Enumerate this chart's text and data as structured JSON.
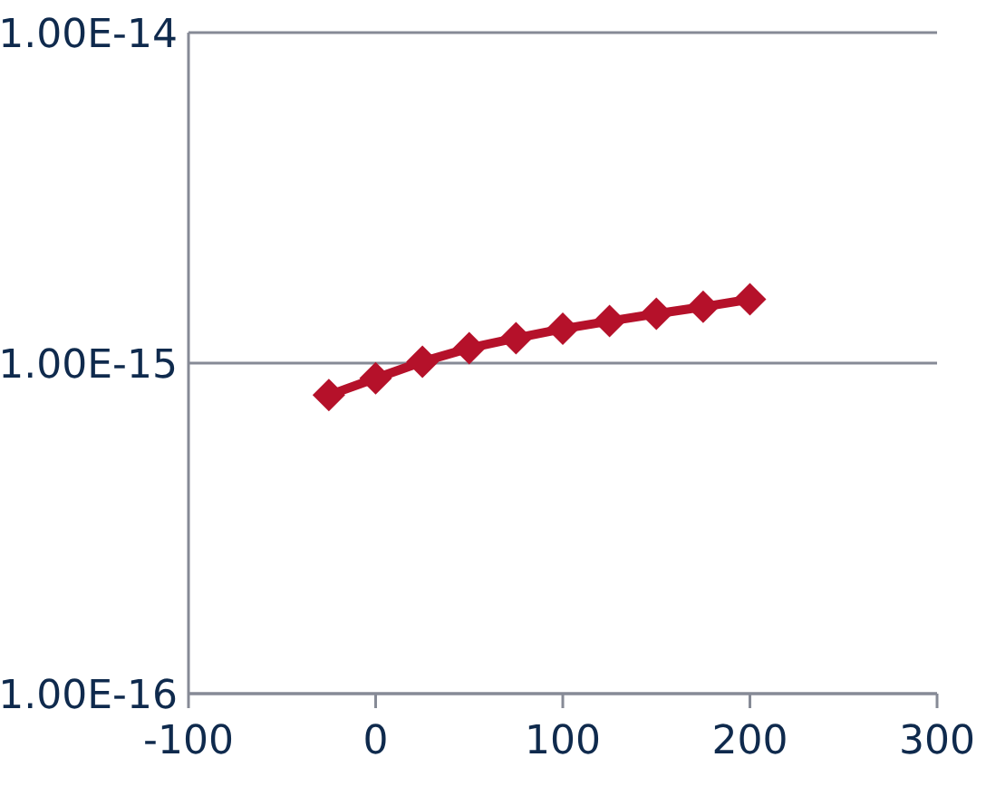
{
  "chart_data": {
    "type": "line",
    "x": [
      -25,
      0,
      25,
      50,
      75,
      100,
      125,
      150,
      175,
      200
    ],
    "series": [
      {
        "color": "#b5112a",
        "values": [
          8e-16,
          9e-16,
          1.01e-15,
          1.11e-15,
          1.19e-15,
          1.27e-15,
          1.34e-15,
          1.41e-15,
          1.48e-15,
          1.56e-15
        ]
      }
    ],
    "xlim": [
      -100,
      300
    ],
    "xticks": [
      -100,
      0,
      100,
      200,
      300
    ],
    "ylim": [
      1e-16,
      1e-14
    ],
    "yticks": [
      {
        "value": 1e-16,
        "label": "1.00E-16"
      },
      {
        "value": 1e-15,
        "label": "1.00E-15"
      },
      {
        "value": 1e-14,
        "label": "1.00E-14"
      }
    ],
    "log": "y",
    "grid": "y",
    "marker": "diamond",
    "line_style": "solid"
  }
}
